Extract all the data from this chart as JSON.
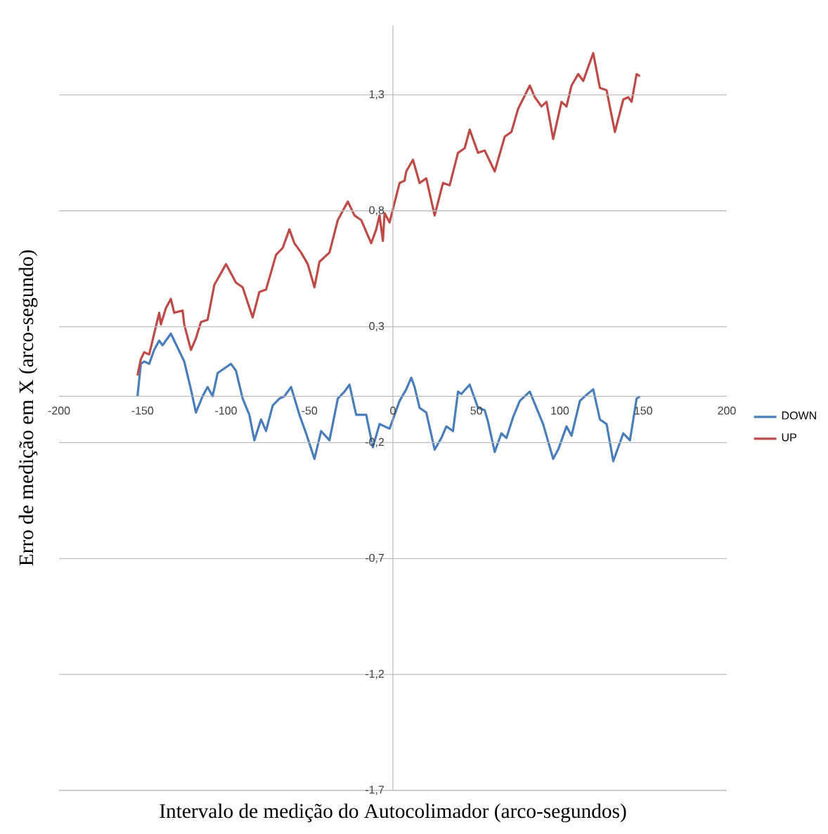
{
  "chart_data": {
    "type": "line",
    "xlabel": "Intervalo de medição do Autocolimador (arco-segundos)",
    "ylabel": "Erro de medição em X (arco-segundo)",
    "xlim": [
      -200,
      200
    ],
    "ylim": [
      -1.7,
      1.6
    ],
    "xticks": [
      -200,
      -150,
      -100,
      -50,
      0,
      50,
      100,
      150,
      200
    ],
    "yticks": [
      {
        "value": -1.7,
        "label": "-1,7"
      },
      {
        "value": -1.2,
        "label": "-1,2"
      },
      {
        "value": -0.7,
        "label": "-0,7"
      },
      {
        "value": -0.2,
        "label": "-0,2"
      },
      {
        "value": 0.3,
        "label": "0,3"
      },
      {
        "value": 0.8,
        "label": "0,8"
      },
      {
        "value": 1.3,
        "label": "1,3"
      }
    ],
    "grid": "y",
    "legend": "right",
    "series": [
      {
        "name": "DOWN",
        "color": "#4a7ebb",
        "x": [
          -153,
          -151,
          -149,
          -146,
          -143,
          -140,
          -138,
          -133,
          -129,
          -125,
          -121,
          -118,
          -114,
          -111,
          -108,
          -105,
          -101,
          -97,
          -94,
          -90,
          -86,
          -83,
          -79,
          -76,
          -72,
          -68,
          -65,
          -61,
          -56,
          -52,
          -47,
          -43,
          -38,
          -33,
          -29,
          -26,
          -22,
          -16,
          -12,
          -8,
          -2,
          4,
          8,
          11,
          13,
          16,
          20,
          25,
          29,
          32,
          36,
          39,
          41,
          46,
          51,
          55,
          57,
          61,
          65,
          68,
          72,
          76,
          82,
          86,
          90,
          96,
          99,
          104,
          107,
          112,
          115,
          120,
          124,
          128,
          132,
          138,
          142,
          146,
          148
        ],
        "values": [
          0.0,
          0.14,
          0.15,
          0.14,
          0.2,
          0.24,
          0.22,
          0.27,
          0.21,
          0.15,
          0.03,
          -0.07,
          0.0,
          0.04,
          0.0,
          0.1,
          0.12,
          0.14,
          0.11,
          -0.01,
          -0.08,
          -0.19,
          -0.1,
          -0.15,
          -0.04,
          -0.01,
          0.0,
          0.04,
          -0.08,
          -0.16,
          -0.27,
          -0.15,
          -0.19,
          -0.01,
          0.02,
          0.05,
          -0.08,
          -0.08,
          -0.22,
          -0.12,
          -0.14,
          -0.02,
          0.03,
          0.08,
          0.04,
          -0.05,
          -0.07,
          -0.23,
          -0.18,
          -0.13,
          -0.15,
          0.02,
          0.01,
          0.05,
          -0.05,
          -0.06,
          -0.11,
          -0.24,
          -0.16,
          -0.18,
          -0.09,
          -0.02,
          0.02,
          -0.05,
          -0.12,
          -0.27,
          -0.23,
          -0.13,
          -0.17,
          -0.02,
          0.0,
          0.03,
          -0.1,
          -0.12,
          -0.28,
          -0.16,
          -0.19,
          -0.01,
          0.0
        ]
      },
      {
        "name": "UP",
        "color": "#be4b48",
        "x": [
          -153,
          -151,
          -149,
          -146,
          -143,
          -140,
          -139,
          -136,
          -133,
          -131,
          -126,
          -125,
          -121,
          -118,
          -115,
          -111,
          -107,
          -100,
          -94,
          -90,
          -84,
          -80,
          -76,
          -70,
          -66,
          -62,
          -59,
          -55,
          -51,
          -47,
          -44,
          -38,
          -33,
          -27,
          -23,
          -19,
          -13,
          -10,
          -8,
          -6,
          -5,
          -2,
          4,
          7,
          8,
          12,
          16,
          20,
          25,
          30,
          34,
          39,
          43,
          46,
          51,
          55,
          61,
          67,
          71,
          75,
          82,
          85,
          89,
          92,
          96,
          101,
          104,
          107,
          111,
          114,
          120,
          124,
          128,
          133,
          138,
          141,
          143,
          146,
          148
        ],
        "values": [
          0.09,
          0.16,
          0.19,
          0.18,
          0.27,
          0.36,
          0.31,
          0.38,
          0.42,
          0.36,
          0.37,
          0.31,
          0.2,
          0.25,
          0.32,
          0.33,
          0.48,
          0.57,
          0.49,
          0.47,
          0.34,
          0.45,
          0.46,
          0.61,
          0.64,
          0.72,
          0.66,
          0.62,
          0.57,
          0.47,
          0.58,
          0.62,
          0.76,
          0.84,
          0.78,
          0.76,
          0.66,
          0.72,
          0.78,
          0.67,
          0.79,
          0.75,
          0.92,
          0.93,
          0.97,
          1.02,
          0.92,
          0.94,
          0.78,
          0.92,
          0.91,
          1.05,
          1.07,
          1.15,
          1.05,
          1.06,
          0.97,
          1.12,
          1.14,
          1.24,
          1.34,
          1.29,
          1.25,
          1.27,
          1.11,
          1.27,
          1.25,
          1.34,
          1.39,
          1.36,
          1.48,
          1.33,
          1.32,
          1.14,
          1.28,
          1.29,
          1.27,
          1.39,
          1.38
        ]
      }
    ]
  }
}
